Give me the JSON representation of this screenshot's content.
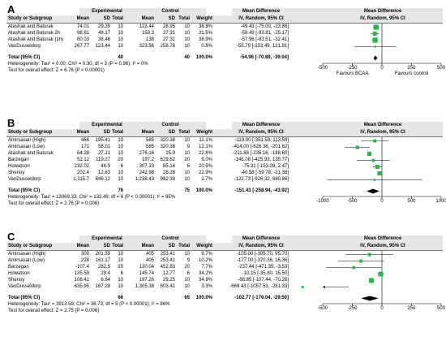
{
  "headers": {
    "study": "Study or Subgroup",
    "experimental": "Experimental",
    "control": "Control",
    "mean": "Mean",
    "sd": "SD",
    "total": "Total",
    "weight": "Weight",
    "md": "Mean Difference",
    "md_sub": "IV, Random, 95% CI"
  },
  "chart_data": [
    {
      "type": "forest",
      "label": "A",
      "studies": [
        {
          "name": "Atashak and Baturak",
          "e_mean": "74.01",
          "e_sd": "29.39",
          "e_n": "10",
          "c_mean": "123.44",
          "c_sd": "28.95",
          "c_n": "10",
          "weight": "38.8%",
          "ci_text": "-49.43 [-75.00, -23.86]",
          "md": -49.43,
          "lo": -75.0,
          "hi": -23.86,
          "w": 38.8
        },
        {
          "name": "Atashak and Baturak 2h",
          "e_mean": "98.81",
          "e_sd": "48.17",
          "e_n": "10",
          "c_mean": "158.3",
          "c_sd": "27.31",
          "c_n": "10",
          "weight": "21.5%",
          "ci_text": "-59.49 [-93.81, -25.17]",
          "md": -59.49,
          "lo": -93.81,
          "hi": -25.17,
          "w": 21.5
        },
        {
          "name": "Atashak and Baturak (1h)",
          "e_mean": "80.03",
          "e_sd": "38.48",
          "e_n": "10",
          "c_mean": "138",
          "c_sd": "27.31",
          "c_n": "10",
          "weight": "38.9%",
          "ci_text": "-57.96 [-83.51, -32.41]",
          "md": -57.96,
          "lo": -83.51,
          "hi": -32.41,
          "w": 38.9
        },
        {
          "name": "VanDusseldorp",
          "e_mean": "267.77",
          "e_sd": "123.44",
          "e_n": "10",
          "c_mean": "323.56",
          "c_sd": "258.78",
          "c_n": "10",
          "weight": "0.8%",
          "ci_text": "-55.79 [-233.49, 121.91]",
          "md": -55.79,
          "lo": -233.49,
          "hi": 121.91,
          "w": 0.8
        }
      ],
      "total": {
        "label": "Total (95% CI)",
        "e_n": "40",
        "c_n": "40",
        "weight": "100.0%",
        "ci_text": "-54.96 [-70.89, -39.04]",
        "md": -54.96,
        "lo": -70.89,
        "hi": -39.04
      },
      "heterogeneity": "Heterogeneity: Tau² = 0.00; Chi² = 0.30, df = 3 (P = 0.96); I² = 0%",
      "overall": "Test for overall effect: Z = 6.76 (P < 0.00001)",
      "axis": {
        "min": -500,
        "max": 500,
        "ticks": [
          -500,
          -250,
          0,
          250,
          500
        ]
      },
      "favours_left": "Favours BCAA",
      "favours_right": "Favours control"
    },
    {
      "type": "forest",
      "label": "B",
      "studies": [
        {
          "name": "Amirsasan (High)",
          "e_mean": "466",
          "e_sd": "195.41",
          "e_n": "10",
          "c_mean": "585",
          "c_sd": "320.38",
          "c_n": "10",
          "weight": "11.1%",
          "ci_text": "-119.00 [-351.59, 113.59]",
          "md": -119.0,
          "lo": -351.59,
          "hi": 113.59,
          "w": 11.1
        },
        {
          "name": "Amirsasan (Low)",
          "e_mean": "171",
          "e_sd": "58.01",
          "e_n": "10",
          "c_mean": "585",
          "c_sd": "320.38",
          "c_n": "9",
          "weight": "12.1%",
          "ci_text": "-414.00 [-626.38, -201.62]",
          "md": -414.0,
          "lo": -626.38,
          "hi": -201.62,
          "w": 12.1
        },
        {
          "name": "Atashak and Baturak",
          "e_mean": "64.28",
          "e_sd": "27.21",
          "e_n": "10",
          "c_mean": "276.16",
          "c_sd": "25.9",
          "c_n": "10",
          "weight": "22.8%",
          "ci_text": "-211.88 [-235.16, -188.60]",
          "md": -211.88,
          "lo": -235.16,
          "hi": -188.6,
          "w": 22.8
        },
        {
          "name": "Barzegari",
          "e_mean": "52.12",
          "e_sd": "119.27",
          "e_n": "20",
          "c_mean": "197.2",
          "c_sd": "629.62",
          "c_n": "20",
          "weight": "9.0%",
          "ci_text": "-145.08 [-425.93, 135.77]",
          "md": -145.08,
          "lo": -425.93,
          "hi": 135.77,
          "w": 9.0
        },
        {
          "name": "Howatson",
          "e_mean": "232.02",
          "e_sd": "46.9",
          "e_n": "6",
          "c_mean": "307.33",
          "c_sd": "85.14",
          "c_n": "6",
          "weight": "20.5%",
          "ci_text": "-75.31 [-153.09, 2.47]",
          "md": -75.31,
          "lo": -153.09,
          "hi": 2.47,
          "w": 20.5
        },
        {
          "name": "Shenoy",
          "e_mean": "202.4",
          "e_sd": "12.63",
          "e_n": "10",
          "c_mean": "242.98",
          "c_sd": "28.28",
          "c_n": "10",
          "weight": "22.9%",
          "ci_text": "-40.58 [-59.78, -21.38]",
          "md": -40.58,
          "lo": -59.78,
          "hi": -21.38,
          "w": 22.9
        },
        {
          "name": "VanDusseldorp",
          "e_mean": "1,115.7",
          "e_sd": "846.12",
          "e_n": "10",
          "c_mean": "1,238.43",
          "c_sd": "982.39",
          "c_n": "10",
          "weight": "1.7%",
          "ci_text": "-122.73 [-926.32, 680.86]",
          "md": -122.73,
          "lo": -926.32,
          "hi": 680.86,
          "w": 1.7
        }
      ],
      "total": {
        "label": "Total (95% CI)",
        "e_n": "76",
        "c_n": "75",
        "weight": "100.0%",
        "ci_text": "-151.43 [-258.94, -43.92]",
        "md": -151.43,
        "lo": -258.94,
        "hi": -43.92
      },
      "heterogeneity": "Heterogeneity: Tau² = 13069.33; Chi² = 132.49, df = 6 (P < 0.00001); I² = 95%",
      "overall": "Test for overall effect: Z = 2.76 (P = 0.006)",
      "axis": {
        "min": -1000,
        "max": 1000,
        "ticks": [
          -1000,
          -500,
          0,
          500,
          1000
        ]
      },
      "favours_left": "",
      "favours_right": ""
    },
    {
      "type": "forest",
      "label": "C",
      "studies": [
        {
          "name": "Amirsasan (High)",
          "e_mean": "300",
          "e_sd": "201.59",
          "e_n": "10",
          "c_mean": "405",
          "c_sd": "253.41",
          "c_n": "10",
          "weight": "9.7%",
          "ci_text": "-105.00 [-305.70, 95.70]",
          "md": -105.0,
          "lo": -305.7,
          "hi": 95.7,
          "w": 9.7
        },
        {
          "name": "Amirsasan (Low)",
          "e_mean": "228",
          "e_sd": "161.17",
          "e_n": "10",
          "c_mean": "405",
          "c_sd": "253.41",
          "c_n": "9",
          "weight": "10.2%",
          "ci_text": "-177.00 [-370.36, 16.36]",
          "md": -177.0,
          "lo": -370.36,
          "hi": 16.36,
          "w": 10.2
        },
        {
          "name": "Barzegari",
          "e_mean": "-107.4",
          "e_sd": "282.5",
          "e_n": "20",
          "c_mean": "130.04",
          "c_sd": "452.83",
          "c_n": "20",
          "weight": "7.7%",
          "ci_text": "-237.44 [-471.35, -3.53]",
          "md": -237.44,
          "lo": -471.35,
          "hi": -3.53,
          "w": 7.7
        },
        {
          "name": "Howatson",
          "e_mean": "135.59",
          "e_sd": "29.4",
          "e_n": "6",
          "c_mean": "145.74",
          "c_sd": "12.77",
          "c_n": "6",
          "weight": "34.2%",
          "ci_text": "-10.15 [-35.80, 15.50]",
          "md": -10.15,
          "lo": -35.8,
          "hi": 15.5,
          "w": 34.2
        },
        {
          "name": "Shenoy",
          "e_mean": "108.41",
          "e_sd": "6.64",
          "e_n": "10",
          "c_mean": "197.26",
          "c_sd": "29.25",
          "c_n": "10",
          "weight": "34.9%",
          "ci_text": "-88.85 [-107.44, -70.26]",
          "md": -88.85,
          "lo": -107.44,
          "hi": -70.26,
          "w": 34.9
        },
        {
          "name": "VanDusseldorp",
          "e_mean": "635.95",
          "e_sd": "167.28",
          "e_n": "10",
          "c_mean": "1,305.38",
          "c_sd": "603.41",
          "c_n": "10",
          "weight": "3.3%",
          "ci_text": "-669.43 [-1057.53, -281.33]",
          "md": -669.43,
          "lo": -1057.53,
          "hi": -281.33,
          "w": 3.3
        }
      ],
      "total": {
        "label": "Total (95% CI)",
        "e_n": "66",
        "c_n": "65",
        "weight": "100.0%",
        "ci_text": "-102.77 [-176.04, -29.50]",
        "md": -102.77,
        "lo": -176.04,
        "hi": -29.5
      },
      "heterogeneity": "Heterogeneity: Tau² = 3913.59; Chi² = 36.73, df = 5 (P < 0.00001); I² = 86%",
      "overall": "Test for overall effect: Z = 2.75 (P = 0.006)",
      "axis": {
        "min": -500,
        "max": 500,
        "ticks": [
          -500,
          -250,
          0,
          250,
          500
        ]
      },
      "favours_left": "",
      "favours_right": ""
    }
  ],
  "colors": {
    "square": "#2fb34a",
    "header_bg": "#e6e6e6",
    "line": "#000000"
  }
}
